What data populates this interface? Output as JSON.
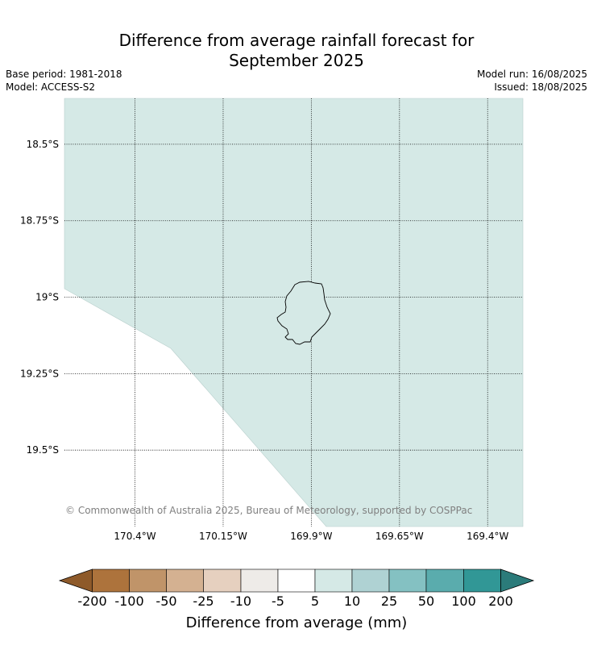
{
  "title_line1": "Difference from average rainfall forecast for",
  "title_line2": "September 2025",
  "base_period": "Base period: 1981-2018",
  "model": "Model: ACCESS-S2",
  "model_run": "Model run: 16/08/2025",
  "issued": "Issued: 18/08/2025",
  "copyright": "© Commonwealth of Australia 2025, Bureau of Meteorology, supported by COSPPac",
  "map": {
    "extent": {
      "lon": [
        -170.6,
        -169.3
      ],
      "lat": [
        -19.75,
        -18.35
      ]
    },
    "lat_labels": [
      {
        "lat": -18.5,
        "label": "18.5°S"
      },
      {
        "lat": -18.75,
        "label": "18.75°S"
      },
      {
        "lat": -19.0,
        "label": "19°S"
      },
      {
        "lat": -19.25,
        "label": "19.25°S"
      },
      {
        "lat": -19.5,
        "label": "19.5°S"
      }
    ],
    "lon_labels": [
      {
        "lon": -170.4,
        "label": "170.4°W"
      },
      {
        "lon": -170.15,
        "label": "170.15°W"
      },
      {
        "lon": -169.9,
        "label": "169.9°W"
      },
      {
        "lon": -169.65,
        "label": "169.65°W"
      },
      {
        "lon": -169.4,
        "label": "169.4°W"
      }
    ],
    "fill_color": "#d5e9e6",
    "fill_category": "5 to 10",
    "island": "Niue"
  },
  "colorbar": {
    "label": "Difference from average (mm)",
    "tick_labels": [
      "-200",
      "-100",
      "-50",
      "-25",
      "-10",
      "-5",
      "5",
      "10",
      "25",
      "50",
      "100",
      "200"
    ],
    "under_color": "#8e5a2a",
    "over_color": "#2b7b7a",
    "colors": [
      "#ad733c",
      "#c09469",
      "#d4b191",
      "#e6d0bf",
      "#eeebe8",
      "#ffffff",
      "#d5e9e6",
      "#afd2d3",
      "#84c1c2",
      "#5aacad",
      "#319796"
    ]
  }
}
